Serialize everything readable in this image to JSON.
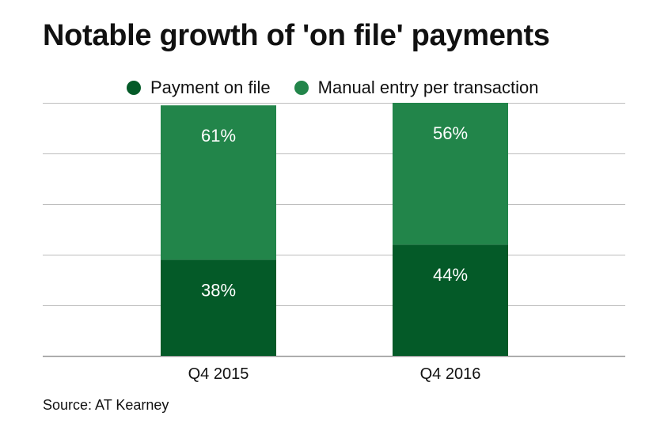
{
  "chart_data": {
    "type": "bar",
    "stacked": true,
    "title": "Notable growth of 'on file' payments",
    "categories": [
      "Q4 2015",
      "Q4 2016"
    ],
    "series": [
      {
        "name": "Payment on file",
        "values": [
          38,
          44
        ],
        "labels": [
          "38%",
          "44%"
        ],
        "color": "#045a28"
      },
      {
        "name": "Manual entry per transaction",
        "values": [
          61,
          56
        ],
        "labels": [
          "61%",
          "56%"
        ],
        "color": "#22854a"
      }
    ],
    "ylim": [
      0,
      100
    ],
    "grid": true,
    "legend": "top",
    "source": "Source: AT Kearney"
  }
}
